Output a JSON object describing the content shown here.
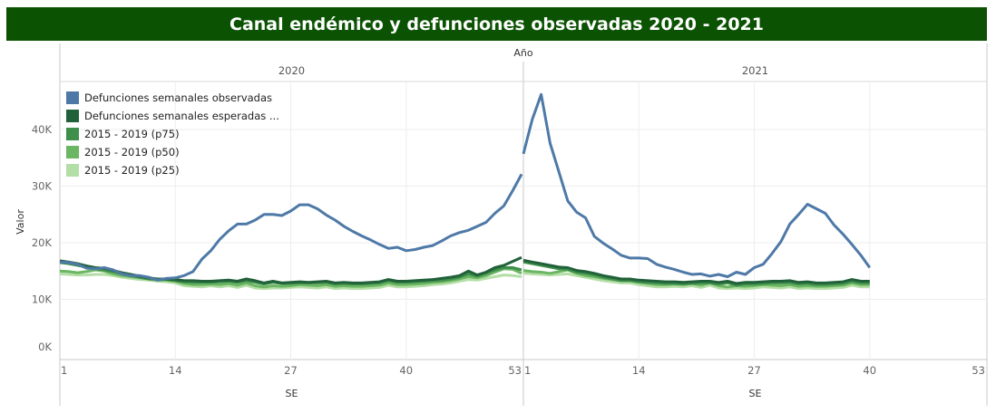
{
  "title": "Canal endémico y defunciones observadas 2020 - 2021",
  "chart_data": {
    "type": "line",
    "title": "Canal endémico y defunciones observadas 2020 - 2021",
    "column_header": "Año",
    "panels": [
      "2020",
      "2021"
    ],
    "xlabel": "SE",
    "ylabel": "Valor",
    "x_ticks": [
      1,
      14,
      27,
      40,
      53
    ],
    "xlim": [
      1,
      53
    ],
    "y_ticks": [
      "0K",
      "10K",
      "20K",
      "30K",
      "40K"
    ],
    "y_tick_values": [
      0,
      10000,
      20000,
      30000,
      40000
    ],
    "ylim": [
      0,
      48000
    ],
    "grid": true,
    "legend_position": "top-left",
    "series": [
      {
        "name": "Defunciones semanales observadas",
        "color": "#4e79a7",
        "values_k": {
          "2020": [
            16.6,
            16.5,
            16.2,
            15.5,
            15.4,
            15.6,
            15.2,
            14.5,
            14.2,
            14.2,
            13.9,
            13.4,
            13.7,
            13.8,
            14.2,
            14.9,
            17.1,
            18.6,
            20.6,
            22.1,
            23.3,
            23.3,
            24.0,
            25.0,
            25.0,
            24.8,
            25.6,
            26.7,
            26.7,
            26.0,
            24.9,
            24.0,
            22.9,
            22.0,
            21.2,
            20.5,
            19.7,
            19.0,
            19.2,
            18.6,
            18.8,
            19.2,
            19.5,
            20.3,
            21.2,
            21.8,
            22.2,
            22.9,
            23.6,
            25.2,
            26.5,
            29.2,
            32.1
          ],
          "2021": [
            35.7,
            41.8,
            46.2,
            37.6,
            32.5,
            27.4,
            25.4,
            24.4,
            21.1,
            19.9,
            18.9,
            17.8,
            17.3,
            17.3,
            17.2,
            16.2,
            15.7,
            15.3,
            14.8,
            14.4,
            14.5,
            14.1,
            14.4,
            14.0,
            14.8,
            14.4,
            15.6,
            16.2,
            18.1,
            20.2,
            23.3,
            25.0,
            26.8,
            26.0,
            25.2,
            23.1,
            21.5,
            19.7,
            17.8,
            15.6
          ]
        }
      },
      {
        "name": "Defunciones semanales esperadas ...",
        "color": "#21613a",
        "values_k": {
          "2020": [
            16.8,
            16.6,
            16.3,
            15.9,
            15.6,
            15.5,
            15.1,
            14.7,
            14.4,
            14.1,
            13.8,
            13.6,
            13.6,
            13.5,
            13.3,
            13.3,
            13.2,
            13.2,
            13.3,
            13.4,
            13.2,
            13.6,
            13.3,
            12.9,
            13.2,
            12.9,
            13.0,
            13.1,
            13.0,
            13.1,
            13.2,
            12.9,
            13.0,
            12.9,
            12.9,
            13.0,
            13.1,
            13.5,
            13.2,
            13.2,
            13.3,
            13.4,
            13.5,
            13.7,
            13.9,
            14.2,
            15.0,
            14.3,
            14.8,
            15.6,
            16.0,
            16.7,
            17.4
          ],
          "2021": [
            16.9,
            16.6,
            16.3,
            16.0,
            15.7,
            15.6,
            15.1,
            14.9,
            14.6,
            14.2,
            13.9,
            13.6,
            13.6,
            13.4,
            13.3,
            13.2,
            13.1,
            13.1,
            13.0,
            13.1,
            13.2,
            13.2,
            13.0,
            13.2,
            12.8,
            13.0,
            13.0,
            13.1,
            13.2,
            13.2,
            13.3,
            13.0,
            13.1,
            12.9,
            12.9,
            13.0,
            13.1,
            13.5,
            13.2,
            13.2
          ]
        }
      },
      {
        "name": "2015 - 2019 (p75)",
        "color": "#3e8e4c",
        "values_k": {
          "2020": [
            16.5,
            16.3,
            16.0,
            15.7,
            15.4,
            15.2,
            14.9,
            14.5,
            14.2,
            13.9,
            13.6,
            13.5,
            13.5,
            13.3,
            13.1,
            13.0,
            13.0,
            13.0,
            13.1,
            13.2,
            13.0,
            13.3,
            13.0,
            12.7,
            13.0,
            12.8,
            12.8,
            12.9,
            12.9,
            12.9,
            13.0,
            12.7,
            12.8,
            12.7,
            12.7,
            12.8,
            12.9,
            13.3,
            13.0,
            13.0,
            13.1,
            13.2,
            13.3,
            13.4,
            13.6,
            13.9,
            14.5,
            14.1,
            14.6,
            15.2,
            15.6,
            15.6,
            15.2
          ],
          "2021": [
            16.6,
            16.3,
            16.0,
            15.7,
            15.4,
            15.3,
            14.8,
            14.6,
            14.3,
            13.9,
            13.6,
            13.3,
            13.3,
            13.1,
            13.0,
            12.9,
            12.8,
            12.8,
            12.7,
            12.8,
            12.9,
            12.9,
            12.7,
            12.9,
            12.5,
            12.7,
            12.7,
            12.8,
            12.9,
            12.9,
            13.0,
            12.7,
            12.8,
            12.6,
            12.6,
            12.7,
            12.8,
            13.2,
            12.9,
            12.9
          ]
        }
      },
      {
        "name": "2015 - 2019 (p50)",
        "color": "#6bb662",
        "values_k": {
          "2020": [
            15.0,
            14.9,
            14.7,
            14.9,
            15.2,
            15.0,
            14.5,
            14.2,
            14.0,
            13.8,
            13.6,
            13.4,
            13.4,
            13.2,
            12.8,
            12.6,
            12.6,
            12.7,
            12.6,
            12.8,
            12.5,
            12.9,
            12.4,
            12.2,
            12.4,
            12.3,
            12.4,
            12.6,
            12.5,
            12.4,
            12.6,
            12.3,
            12.4,
            12.3,
            12.3,
            12.4,
            12.5,
            12.9,
            12.6,
            12.6,
            12.7,
            12.8,
            13.0,
            13.1,
            13.3,
            13.6,
            14.0,
            13.8,
            14.2,
            14.8,
            15.4,
            15.3,
            14.6
          ],
          "2021": [
            15.1,
            14.9,
            14.8,
            14.6,
            14.9,
            15.2,
            14.6,
            14.2,
            14.0,
            13.7,
            13.5,
            13.3,
            13.3,
            13.0,
            12.8,
            12.6,
            12.6,
            12.7,
            12.6,
            12.8,
            12.5,
            12.9,
            12.4,
            12.2,
            12.4,
            12.3,
            12.4,
            12.6,
            12.5,
            12.4,
            12.6,
            12.3,
            12.4,
            12.3,
            12.3,
            12.4,
            12.5,
            12.9,
            12.6,
            12.6
          ]
        }
      },
      {
        "name": "2015 - 2019 (p25)",
        "color": "#b3dea5",
        "values_k": {
          "2020": [
            14.5,
            14.4,
            14.3,
            14.3,
            14.4,
            14.4,
            14.2,
            13.9,
            13.7,
            13.5,
            13.4,
            13.2,
            13.1,
            12.9,
            12.4,
            12.3,
            12.2,
            12.4,
            12.2,
            12.4,
            12.1,
            12.5,
            12.0,
            11.9,
            12.0,
            12.0,
            12.1,
            12.2,
            12.1,
            12.0,
            12.2,
            11.9,
            12.0,
            11.9,
            11.9,
            12.0,
            12.1,
            12.5,
            12.2,
            12.2,
            12.3,
            12.4,
            12.6,
            12.7,
            12.9,
            13.2,
            13.5,
            13.4,
            13.7,
            14.0,
            14.3,
            14.2,
            14.0
          ],
          "2021": [
            14.6,
            14.5,
            14.4,
            14.3,
            14.4,
            14.5,
            14.2,
            13.9,
            13.6,
            13.3,
            13.1,
            12.9,
            12.9,
            12.6,
            12.4,
            12.2,
            12.2,
            12.3,
            12.2,
            12.4,
            12.1,
            12.5,
            12.0,
            11.9,
            12.0,
            11.9,
            12.0,
            12.2,
            12.1,
            12.0,
            12.2,
            11.9,
            12.0,
            11.9,
            11.9,
            12.0,
            12.1,
            12.5,
            12.2,
            12.2
          ]
        }
      }
    ]
  }
}
